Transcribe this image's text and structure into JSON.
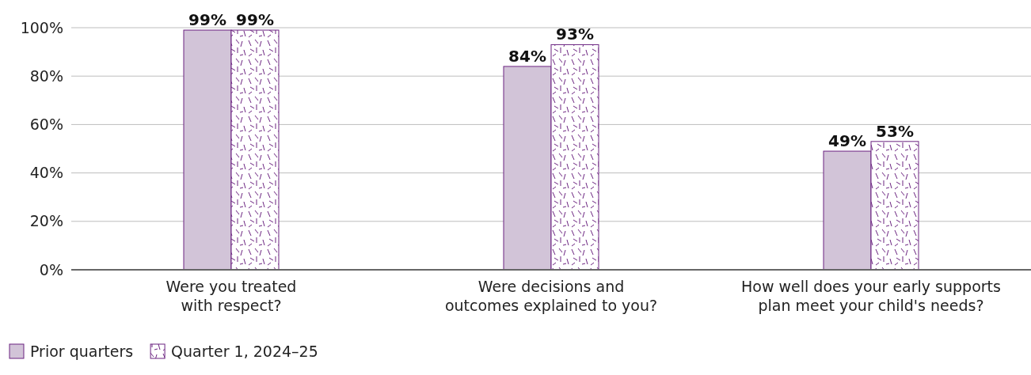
{
  "chart_data": {
    "type": "bar",
    "categories": [
      "Were you treated with respect?",
      "Were decisions and outcomes explained to you?",
      "How well does your early supports plan meet your child's needs?"
    ],
    "series": [
      {
        "name": "Prior quarters",
        "color": "#d2c4d8",
        "values": [
          99,
          84,
          49
        ]
      },
      {
        "name": "Quarter 1, 2024–25",
        "color": "#6b2380",
        "values": [
          99,
          93,
          53
        ]
      }
    ],
    "ylim": [
      0,
      100
    ],
    "yticks": [
      {
        "value": 0,
        "label": "0%"
      },
      {
        "value": 20,
        "label": "20%"
      },
      {
        "value": 40,
        "label": "40%"
      },
      {
        "value": 60,
        "label": "60%"
      },
      {
        "value": 80,
        "label": "80%"
      },
      {
        "value": 100,
        "label": "100%"
      }
    ],
    "value_labels": [
      [
        "99%",
        "84%",
        "49%"
      ],
      [
        "99%",
        "93%",
        "53%"
      ]
    ],
    "grid": "y",
    "legend": "bottom left"
  }
}
